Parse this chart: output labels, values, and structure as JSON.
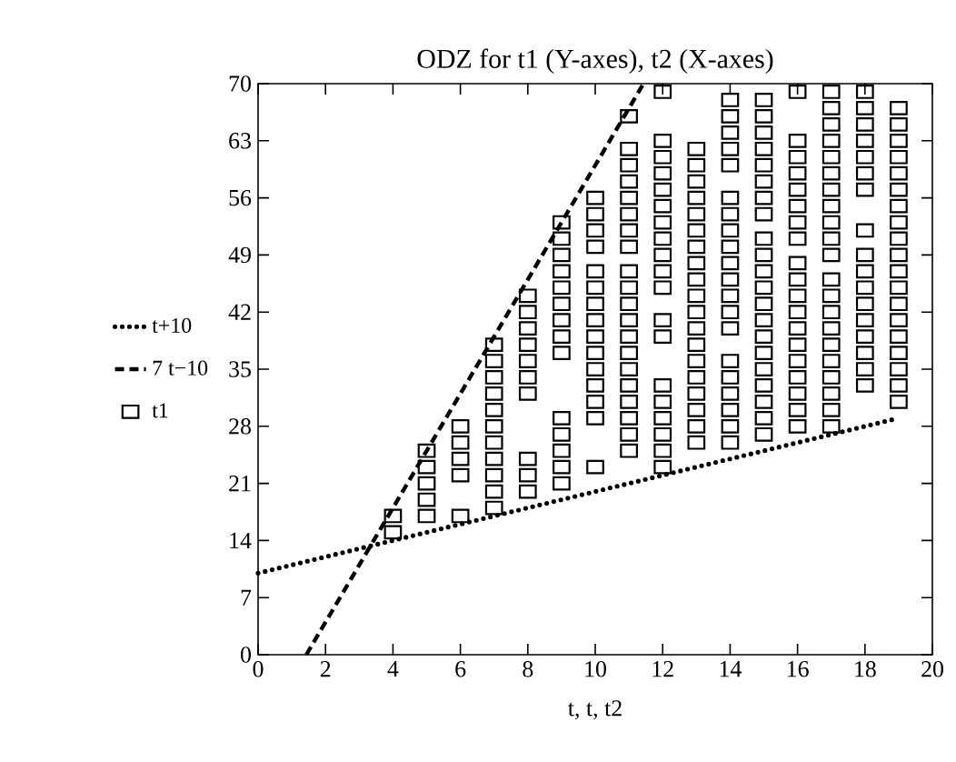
{
  "chart_data": {
    "type": "scatter",
    "title": "ODZ for t1 (Y-axes), t2 (X-axes)",
    "xlabel": "t, t, t2",
    "xlim": [
      0,
      20
    ],
    "ylim": [
      0,
      70
    ],
    "xticks": [
      0,
      2,
      4,
      6,
      8,
      10,
      12,
      14,
      16,
      18,
      20
    ],
    "yticks": [
      0,
      7,
      14,
      21,
      28,
      35,
      42,
      49,
      56,
      63,
      70
    ],
    "grid": false,
    "legend": "left",
    "series": [
      {
        "name": "t+10",
        "type": "line",
        "color": "#000000",
        "line_style": "dotted",
        "marker": "none",
        "x": [
          0,
          19
        ],
        "values": [
          10,
          29
        ]
      },
      {
        "name": "7 t−10",
        "type": "line",
        "color": "#000000",
        "line_style": "dashed",
        "marker": "none",
        "x": [
          1.43,
          11.43
        ],
        "values": [
          0,
          70
        ]
      },
      {
        "name": "t1",
        "color": "#000000",
        "marker": "square",
        "x": [
          4,
          4,
          5,
          5,
          5,
          5,
          5,
          6,
          6,
          6,
          6,
          6,
          7,
          7,
          7,
          7,
          7,
          7,
          7,
          7,
          7,
          7,
          7,
          8,
          8,
          8,
          8,
          8,
          8,
          8,
          8,
          8,
          8,
          9,
          9,
          9,
          9,
          9,
          9,
          9,
          9,
          9,
          9,
          9,
          9,
          9,
          9,
          10,
          10,
          10,
          10,
          10,
          10,
          10,
          10,
          10,
          10,
          10,
          10,
          10,
          10,
          10,
          11,
          11,
          11,
          11,
          11,
          11,
          11,
          11,
          11,
          11,
          11,
          11,
          11,
          11,
          11,
          11,
          11,
          11,
          11,
          11,
          12,
          12,
          12,
          12,
          12,
          12,
          12,
          12,
          12,
          12,
          12,
          12,
          12,
          12,
          12,
          12,
          12,
          12,
          12,
          13,
          13,
          13,
          13,
          13,
          13,
          13,
          13,
          13,
          13,
          13,
          13,
          13,
          13,
          13,
          13,
          13,
          13,
          13,
          14,
          14,
          14,
          14,
          14,
          14,
          14,
          14,
          14,
          14,
          14,
          14,
          14,
          14,
          14,
          14,
          14,
          14,
          14,
          14,
          15,
          15,
          15,
          15,
          15,
          15,
          15,
          15,
          15,
          15,
          15,
          15,
          15,
          15,
          15,
          15,
          15,
          15,
          15,
          15,
          15,
          16,
          16,
          16,
          16,
          16,
          16,
          16,
          16,
          16,
          16,
          16,
          16,
          16,
          16,
          16,
          16,
          16,
          16,
          16,
          17,
          17,
          17,
          17,
          17,
          17,
          17,
          17,
          17,
          17,
          17,
          17,
          17,
          17,
          17,
          17,
          17,
          17,
          17,
          17,
          17,
          18,
          18,
          18,
          18,
          18,
          18,
          18,
          18,
          18,
          18,
          18,
          18,
          18,
          18,
          18,
          18,
          18,
          19,
          19,
          19,
          19,
          19,
          19,
          19,
          19,
          19,
          19,
          19,
          19,
          19,
          19,
          19,
          19,
          19,
          19,
          19
        ],
        "values": [
          15,
          17,
          17,
          19,
          21,
          23,
          25,
          17,
          22,
          24,
          26,
          28,
          18,
          20,
          22,
          24,
          26,
          28,
          30,
          32,
          34,
          36,
          38,
          20,
          22,
          24,
          32,
          34,
          36,
          38,
          40,
          42,
          44,
          21,
          23,
          25,
          27,
          29,
          37,
          39,
          41,
          43,
          45,
          47,
          49,
          51,
          53,
          23,
          29,
          31,
          33,
          35,
          37,
          39,
          41,
          43,
          45,
          47,
          50,
          52,
          54,
          56,
          25,
          27,
          29,
          31,
          33,
          35,
          37,
          39,
          41,
          43,
          45,
          47,
          50,
          52,
          54,
          56,
          58,
          60,
          62,
          66,
          23,
          25,
          27,
          29,
          31,
          33,
          39,
          41,
          45,
          47,
          49,
          51,
          53,
          55,
          57,
          59,
          61,
          63,
          69,
          26,
          28,
          30,
          32,
          34,
          36,
          38,
          40,
          42,
          44,
          46,
          48,
          50,
          52,
          54,
          56,
          58,
          60,
          62,
          26,
          28,
          30,
          32,
          34,
          36,
          40,
          42,
          44,
          46,
          48,
          50,
          52,
          54,
          56,
          60,
          62,
          64,
          66,
          68,
          27,
          29,
          31,
          33,
          35,
          37,
          39,
          41,
          43,
          45,
          47,
          49,
          51,
          54,
          56,
          58,
          60,
          62,
          64,
          66,
          68,
          28,
          30,
          32,
          34,
          36,
          38,
          40,
          42,
          44,
          46,
          48,
          51,
          53,
          55,
          57,
          59,
          61,
          63,
          69,
          28,
          30,
          32,
          34,
          36,
          38,
          40,
          42,
          44,
          46,
          49,
          51,
          53,
          55,
          57,
          59,
          61,
          63,
          65,
          67,
          69,
          33,
          35,
          37,
          39,
          41,
          43,
          45,
          47,
          49,
          52,
          57,
          59,
          61,
          63,
          65,
          67,
          69,
          31,
          33,
          35,
          37,
          39,
          41,
          43,
          45,
          47,
          49,
          51,
          53,
          55,
          57,
          59,
          61,
          63,
          65,
          67
        ]
      }
    ]
  }
}
